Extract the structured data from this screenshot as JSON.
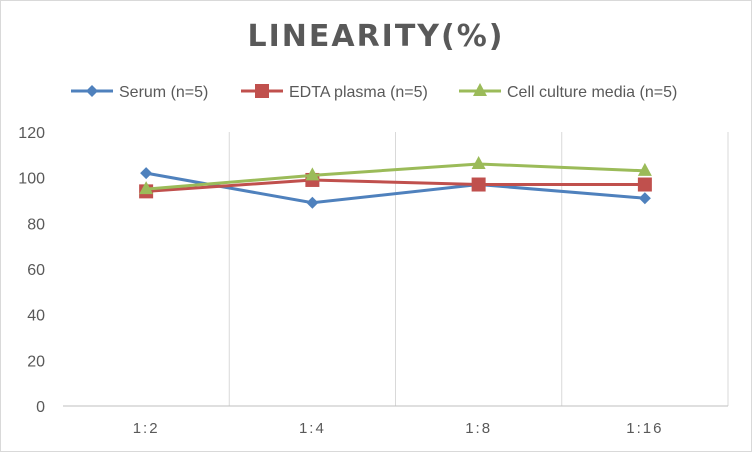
{
  "chart_data": {
    "type": "line",
    "title": "LINEARITY(%)",
    "categories": [
      "1:2",
      "1:4",
      "1:8",
      "1:16"
    ],
    "ylim": [
      0,
      120
    ],
    "yticks": [
      0,
      20,
      40,
      60,
      80,
      100,
      120
    ],
    "grid": "vertical",
    "legend": "top",
    "series": [
      {
        "name": "Serum (n=5)",
        "values": [
          102,
          89,
          97,
          91
        ],
        "color": "#4f81bd",
        "marker": "diamond"
      },
      {
        "name": "EDTA plasma (n=5)",
        "values": [
          94,
          99,
          97,
          97
        ],
        "color": "#c0504d",
        "marker": "square"
      },
      {
        "name": "Cell culture media (n=5)",
        "values": [
          95,
          101,
          106,
          103
        ],
        "color": "#9bbb59",
        "marker": "triangle"
      }
    ]
  }
}
